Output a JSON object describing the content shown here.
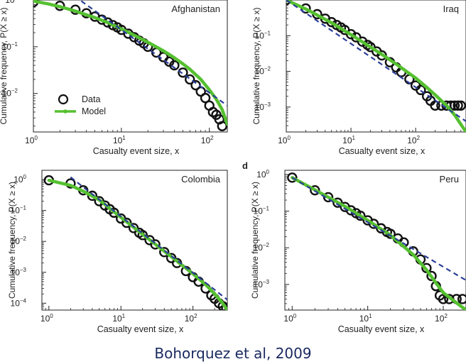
{
  "caption": "Bohorquez et al, 2009",
  "colors": {
    "model": "#55c030",
    "fit": "#2c3e99",
    "data": "#111111"
  },
  "chart_data": [
    {
      "type": "scatter",
      "title": "Afghanistan",
      "panel_letter": "",
      "xlabel": "Casualty event size, x",
      "ylabel": "Cumulative frequency, P(X ≥ x)",
      "xlim": [
        1,
        160
      ],
      "ylim": [
        0.0015,
        1.0
      ],
      "x_ticks": [
        {
          "v": 1,
          "exp": "0"
        },
        {
          "v": 10,
          "exp": "1"
        },
        {
          "v": 100,
          "exp": "2"
        }
      ],
      "y_ticks": [
        {
          "v": 1,
          "exp": "0"
        },
        {
          "v": 0.1,
          "exp": "−1"
        },
        {
          "v": 0.01,
          "exp": "−2"
        }
      ],
      "legend": {
        "position": "lower-left",
        "entries": [
          "Data",
          "Model"
        ]
      },
      "series": [
        {
          "name": "Data",
          "style": "open-circles",
          "x": [
            1,
            2,
            3,
            4,
            5,
            6,
            7,
            8,
            9,
            10,
            12,
            14,
            16,
            18,
            20,
            25,
            30,
            35,
            40,
            50,
            60,
            70,
            80,
            90,
            100,
            110,
            120,
            130,
            140
          ],
          "y": [
            0.9,
            0.75,
            0.62,
            0.52,
            0.44,
            0.38,
            0.33,
            0.29,
            0.26,
            0.23,
            0.19,
            0.16,
            0.135,
            0.118,
            0.1,
            0.075,
            0.06,
            0.048,
            0.04,
            0.028,
            0.02,
            0.015,
            0.011,
            0.008,
            0.0055,
            0.004,
            0.0035,
            0.0028,
            0.002
          ]
        },
        {
          "name": "Model",
          "style": "green-line",
          "x": [
            1,
            1.5,
            2,
            3,
            5,
            7,
            10,
            15,
            20,
            30,
            40,
            50,
            60,
            80,
            100,
            120,
            140,
            160
          ],
          "y": [
            0.95,
            0.82,
            0.72,
            0.58,
            0.42,
            0.33,
            0.24,
            0.165,
            0.125,
            0.082,
            0.058,
            0.043,
            0.033,
            0.02,
            0.012,
            0.0075,
            0.0045,
            0.0022
          ]
        },
        {
          "name": "Power-law fit",
          "style": "dashed",
          "x": [
            3.5,
            160
          ],
          "y": [
            0.95,
            0.0055
          ]
        }
      ]
    },
    {
      "type": "scatter",
      "title": "Iraq",
      "panel_letter": "",
      "xlabel": "Casualty event size, x",
      "ylabel": "Cumulative frequency, P(X ≥ x)",
      "xlim": [
        1,
        600
      ],
      "ylim": [
        0.0002,
        1.0
      ],
      "x_ticks": [
        {
          "v": 1,
          "exp": "0"
        },
        {
          "v": 10,
          "exp": "1"
        },
        {
          "v": 100,
          "exp": "2"
        }
      ],
      "y_ticks": [
        {
          "v": 0.1,
          "exp": "−1"
        },
        {
          "v": 0.01,
          "exp": "−2"
        },
        {
          "v": 0.001,
          "exp": "−3"
        }
      ],
      "legend": null,
      "series": [
        {
          "name": "Data",
          "style": "open-circles",
          "x": [
            1,
            2,
            3,
            4,
            5,
            6,
            7,
            8,
            10,
            12,
            15,
            18,
            20,
            25,
            30,
            40,
            50,
            60,
            80,
            100,
            120,
            150,
            170,
            200,
            250,
            300,
            350,
            400,
            450,
            500
          ],
          "y": [
            1.0,
            0.58,
            0.4,
            0.3,
            0.24,
            0.2,
            0.17,
            0.145,
            0.11,
            0.09,
            0.068,
            0.055,
            0.048,
            0.036,
            0.028,
            0.018,
            0.013,
            0.0095,
            0.006,
            0.004,
            0.003,
            0.002,
            0.0015,
            0.0011,
            0.0011,
            0.0011,
            0.0011,
            0.0011,
            0.0011,
            0.0011
          ]
        },
        {
          "name": "Model",
          "style": "green-line",
          "x": [
            1,
            2,
            3,
            5,
            10,
            20,
            30,
            50,
            100,
            150,
            200,
            300,
            400,
            600
          ],
          "y": [
            1.0,
            0.56,
            0.38,
            0.23,
            0.107,
            0.048,
            0.03,
            0.016,
            0.0065,
            0.0035,
            0.0022,
            0.0011,
            0.0006,
            0.0002
          ]
        },
        {
          "name": "Power-law fit",
          "style": "dashed",
          "x": [
            1,
            600
          ],
          "y": [
            1.0,
            0.0004
          ]
        }
      ]
    },
    {
      "type": "scatter",
      "title": "Colombia",
      "panel_letter": "",
      "xlabel": "Casualty event size, x",
      "ylabel": "Cumulative frequency, P(X ≥ x)",
      "xlim": [
        0.8,
        300
      ],
      "ylim": [
        6e-05,
        2.0
      ],
      "x_ticks": [
        {
          "v": 1,
          "exp": "0"
        },
        {
          "v": 10,
          "exp": "1"
        },
        {
          "v": 100,
          "exp": "2"
        }
      ],
      "y_ticks": [
        {
          "v": 1,
          "exp": "0"
        },
        {
          "v": 0.1,
          "exp": "−1"
        },
        {
          "v": 0.01,
          "exp": "−2"
        },
        {
          "v": 0.001,
          "exp": "−3"
        },
        {
          "v": 0.0001,
          "exp": "−4"
        }
      ],
      "legend": null,
      "series": [
        {
          "name": "Data",
          "style": "open-circles",
          "x": [
            1,
            2,
            3,
            4,
            5,
            6,
            7,
            8,
            10,
            12,
            15,
            18,
            20,
            25,
            30,
            40,
            50,
            60,
            80,
            100,
            120,
            150,
            180,
            200,
            230,
            260,
            290
          ],
          "y": [
            0.95,
            0.75,
            0.45,
            0.3,
            0.2,
            0.145,
            0.11,
            0.085,
            0.055,
            0.04,
            0.027,
            0.019,
            0.016,
            0.011,
            0.008,
            0.0045,
            0.0029,
            0.002,
            0.0011,
            0.0007,
            0.0005,
            0.0003,
            0.00018,
            0.00014,
            0.0001,
            8e-05,
            7e-05
          ]
        },
        {
          "name": "Model",
          "style": "green-line",
          "x": [
            1,
            2,
            3,
            5,
            10,
            20,
            50,
            100,
            150,
            200,
            250,
            300
          ],
          "y": [
            0.95,
            0.65,
            0.42,
            0.22,
            0.06,
            0.017,
            0.0032,
            0.0009,
            0.0004,
            0.0002,
            0.00011,
            6e-05
          ]
        },
        {
          "name": "Power-law fit",
          "style": "dashed",
          "x": [
            2,
            300
          ],
          "y": [
            1.2,
            0.00013
          ]
        }
      ]
    },
    {
      "type": "scatter",
      "title": "Peru",
      "panel_letter": "d",
      "xlabel": "Casualty event size, x",
      "ylabel": "Cumulative frequency, P(X ≥ x)",
      "xlim": [
        0.8,
        200
      ],
      "ylim": [
        0.0002,
        1.3
      ],
      "x_ticks": [
        {
          "v": 1,
          "exp": "0"
        },
        {
          "v": 10,
          "exp": "1"
        },
        {
          "v": 100,
          "exp": "2"
        }
      ],
      "y_ticks": [
        {
          "v": 1,
          "exp": "0"
        },
        {
          "v": 0.1,
          "exp": "−1"
        },
        {
          "v": 0.01,
          "exp": "−2"
        },
        {
          "v": 0.001,
          "exp": "−3"
        }
      ],
      "legend": null,
      "series": [
        {
          "name": "Data",
          "style": "open-circles",
          "x": [
            1,
            2,
            3,
            4,
            5,
            6,
            7,
            8,
            10,
            12,
            15,
            18,
            20,
            25,
            30,
            40,
            50,
            60,
            70,
            80,
            90,
            100,
            120,
            150,
            180
          ],
          "y": [
            0.82,
            0.37,
            0.24,
            0.17,
            0.13,
            0.105,
            0.088,
            0.075,
            0.056,
            0.045,
            0.034,
            0.027,
            0.024,
            0.018,
            0.014,
            0.008,
            0.0048,
            0.0028,
            0.0017,
            0.0009,
            0.0005,
            0.0004,
            0.0004,
            0.0004,
            0.0004
          ]
        },
        {
          "name": "Model",
          "style": "green-line",
          "x": [
            1,
            2,
            3,
            5,
            10,
            20,
            40,
            60,
            80,
            100,
            140,
            200
          ],
          "y": [
            0.82,
            0.38,
            0.24,
            0.135,
            0.056,
            0.022,
            0.0065,
            0.0025,
            0.0011,
            0.0006,
            0.00035,
            0.0002
          ]
        },
        {
          "name": "Power-law fit",
          "style": "dashed",
          "x": [
            1,
            200
          ],
          "y": [
            0.82,
            0.0013
          ]
        }
      ]
    }
  ]
}
